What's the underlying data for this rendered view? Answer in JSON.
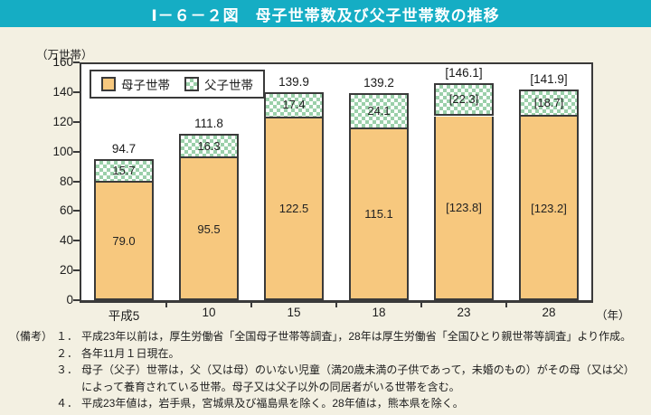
{
  "header": {
    "title": "Ⅰ－６－２図　母子世帯数及び父子世帯数の推移"
  },
  "chart_data": {
    "type": "bar",
    "stacked": true,
    "title": "母子世帯数及び父子世帯数の推移",
    "unit_label": "（万世帯）",
    "x_suffix": "（年）",
    "categories": [
      "平成5",
      "10",
      "15",
      "18",
      "23",
      "28"
    ],
    "series": [
      {
        "name": "母子世帯",
        "values": [
          79.0,
          95.5,
          122.5,
          115.1,
          123.8,
          123.2
        ],
        "labels": [
          "79.0",
          "95.5",
          "122.5",
          "115.1",
          "[123.8]",
          "[123.2]"
        ],
        "color": "#f7c87e"
      },
      {
        "name": "父子世帯",
        "values": [
          15.7,
          16.3,
          17.4,
          24.1,
          22.3,
          18.7
        ],
        "labels": [
          "15.7",
          "16.3",
          "17.4",
          "24.1",
          "[22.3]",
          "[18.7]"
        ],
        "color": "#9bd0aa"
      }
    ],
    "totals": [
      94.7,
      111.8,
      139.9,
      139.2,
      146.1,
      141.9
    ],
    "total_labels": [
      "94.7",
      "111.8",
      "139.9",
      "139.2",
      "[146.1]",
      "[141.9]"
    ],
    "ylim": [
      0,
      160
    ],
    "ytick_step": 20,
    "grid": false,
    "legend_position": "top-left-inside"
  },
  "notes": {
    "prefix": "（備考）",
    "items": [
      {
        "num": "１．",
        "text": "平成23年以前は，厚生労働省「全国母子世帯等調査」，28年は厚生労働省「全国ひとり親世帯等調査」より作成。"
      },
      {
        "num": "２．",
        "text": "各年11月１日現在。"
      },
      {
        "num": "３．",
        "text": "母子（父子）世帯は，父（又は母）のいない児童（満20歳未満の子供であって，未婚のもの）がその母（又は父）によって養育されている世帯。母子又は父子以外の同居者がいる世帯を含む。"
      },
      {
        "num": "４．",
        "text": "平成23年値は，岩手県，宮城県及び福島県を除く。28年値は，熊本県を除く。"
      }
    ]
  },
  "colors": {
    "header_teal": "#15adc4",
    "page_cream": "#f3f0e2",
    "mother_orange": "#f7c87e",
    "father_green": "#9bd0aa",
    "outline_dark": "#3a3a3a",
    "plot_white": "#ffffff"
  }
}
